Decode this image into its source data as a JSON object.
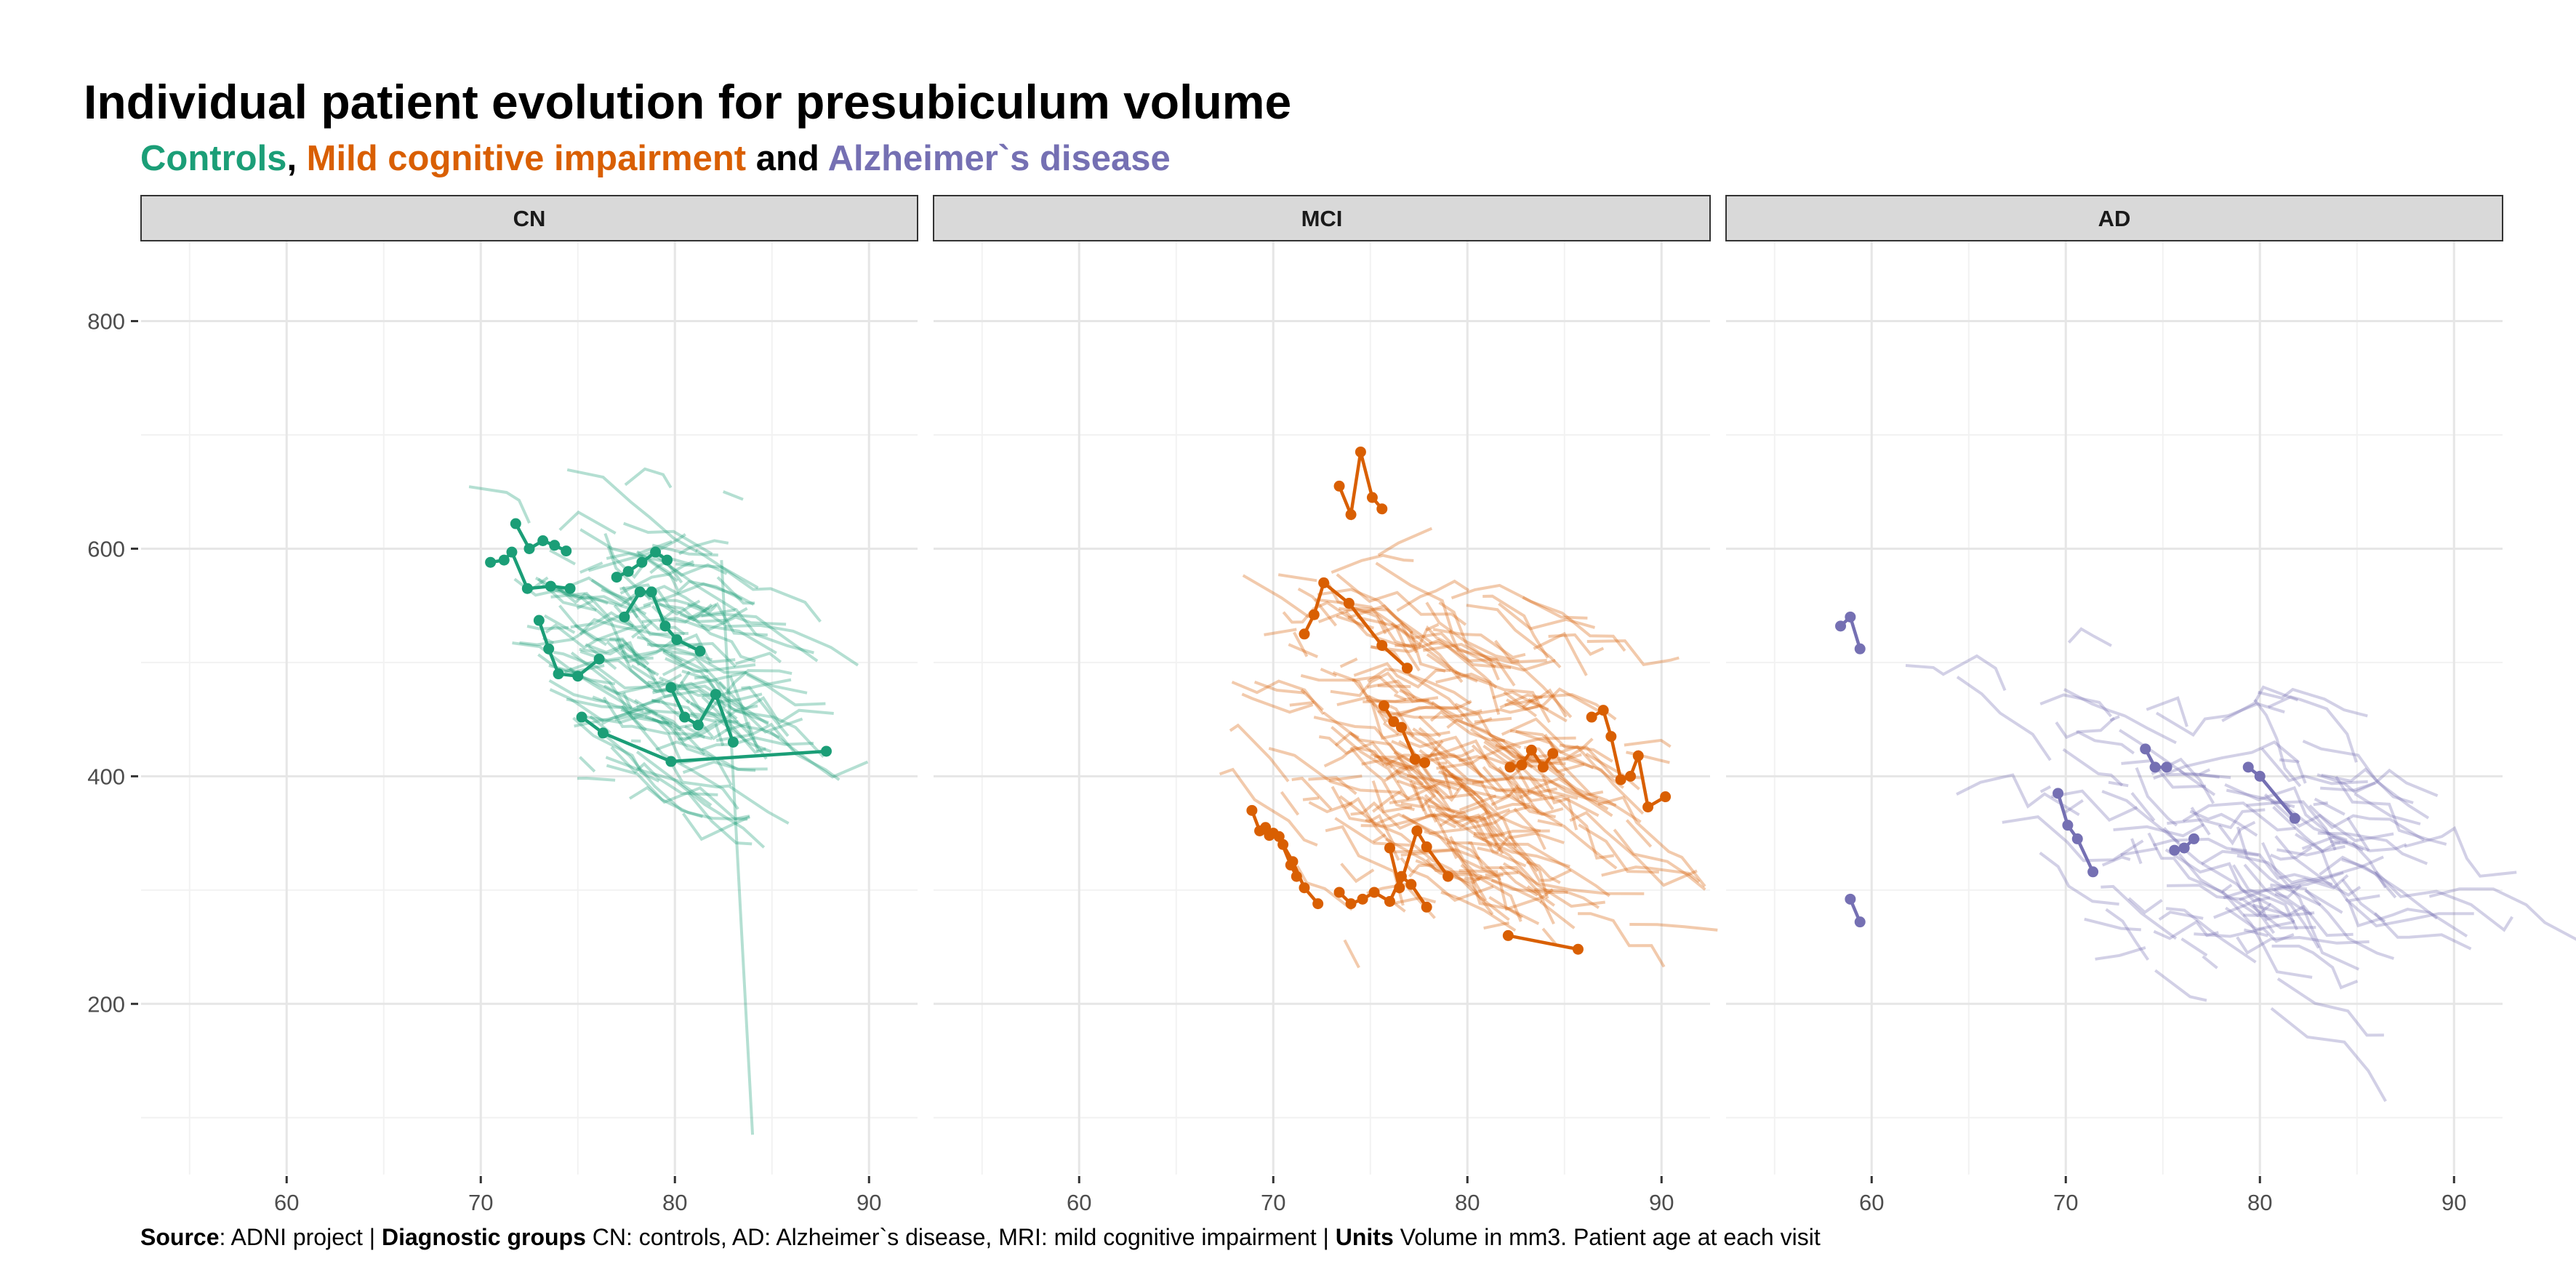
{
  "title": "Individual patient evolution for presubiculum volume",
  "subtitle": {
    "part1": "Controls",
    "sep1": ", ",
    "part2": "Mild cognitive impairment",
    "sep2": " and ",
    "part3": "Alzheimer`s disease",
    "color1": "#1b9e77",
    "color2": "#d95f02",
    "color3": "#7570b3"
  },
  "caption": {
    "label1": "Source",
    "text1": ": ADNI project | ",
    "label2": "Diagnostic groups",
    "text2": " CN: controls, AD: Alzheimer`s disease, MRI: mild cognitive impairment | ",
    "label3": "Units",
    "text3": " Volume in mm3. Patient age at each visit"
  },
  "chart_data": {
    "type": "line",
    "facets": [
      "CN",
      "MCI",
      "AD"
    ],
    "xlim": [
      52.5,
      92.5
    ],
    "ylim": [
      50,
      870
    ],
    "x_ticks": [
      60,
      70,
      80,
      90
    ],
    "y_ticks": [
      200,
      400,
      600,
      800
    ],
    "grid": true,
    "background_trajectories": "many faint individual patient trajectories (one line per patient) across all facets",
    "highlighted_series": {
      "CN": [
        {
          "x": [
            70.5,
            71.2,
            71.6,
            72.4,
            73.6,
            74.6
          ],
          "y": [
            588,
            590,
            597,
            565,
            567,
            565
          ]
        },
        {
          "x": [
            71.8,
            72.5,
            73.2,
            73.8,
            74.4
          ],
          "y": [
            622,
            600,
            607,
            603,
            598
          ]
        },
        {
          "x": [
            73.0,
            73.5,
            74.0,
            75.0,
            76.1
          ],
          "y": [
            537,
            512,
            490,
            488,
            503
          ]
        },
        {
          "x": [
            75.2,
            76.3,
            79.8,
            87.8
          ],
          "y": [
            452,
            438,
            413,
            422
          ]
        },
        {
          "x": [
            77.0,
            77.6,
            78.3,
            79.0,
            79.6
          ],
          "y": [
            575,
            580,
            588,
            597,
            590
          ]
        },
        {
          "x": [
            77.4,
            78.2,
            78.8,
            79.5,
            80.1,
            81.3
          ],
          "y": [
            540,
            562,
            562,
            532,
            520,
            510
          ]
        },
        {
          "x": [
            79.8,
            80.5,
            81.2,
            82.1,
            83.0
          ],
          "y": [
            478,
            452,
            445,
            472,
            430
          ]
        }
      ],
      "MCI": [
        {
          "x": [
            73.4,
            74.0,
            74.5,
            75.1,
            75.6
          ],
          "y": [
            655,
            630,
            685,
            645,
            635
          ]
        },
        {
          "x": [
            71.6,
            72.1,
            72.6,
            73.9,
            75.6,
            76.9
          ],
          "y": [
            525,
            542,
            570,
            552,
            515,
            495
          ]
        },
        {
          "x": [
            75.7,
            76.2,
            76.6,
            77.3,
            77.8
          ],
          "y": [
            462,
            448,
            443,
            415,
            412
          ]
        },
        {
          "x": [
            68.9,
            69.3,
            69.8,
            70.3,
            70.9,
            71.2
          ],
          "y": [
            370,
            352,
            348,
            347,
            322,
            312
          ]
        },
        {
          "x": [
            69.6,
            70.0,
            70.5,
            71.0,
            71.6,
            72.3
          ],
          "y": [
            355,
            350,
            340,
            325,
            302,
            288
          ]
        },
        {
          "x": [
            73.4,
            74.0,
            74.6,
            75.2,
            76.0,
            76.6,
            77.1,
            77.9
          ],
          "y": [
            298,
            288,
            292,
            298,
            290,
            312,
            305,
            285
          ]
        },
        {
          "x": [
            76.0,
            76.5,
            77.4,
            77.9,
            79.0
          ],
          "y": [
            337,
            302,
            352,
            338,
            312
          ]
        },
        {
          "x": [
            82.2,
            82.8,
            83.3,
            83.9,
            84.4
          ],
          "y": [
            408,
            410,
            423,
            408,
            420
          ]
        },
        {
          "x": [
            86.4,
            87.0,
            87.4,
            87.9,
            88.4,
            88.8,
            89.3,
            90.2
          ],
          "y": [
            452,
            458,
            435,
            397,
            400,
            418,
            373,
            382
          ]
        },
        {
          "x": [
            82.1,
            85.7
          ],
          "y": [
            260,
            248
          ]
        }
      ],
      "AD": [
        {
          "x": [
            58.4,
            58.9,
            59.4
          ],
          "y": [
            532,
            540,
            512
          ]
        },
        {
          "x": [
            58.9,
            59.4
          ],
          "y": [
            292,
            272
          ]
        },
        {
          "x": [
            69.6,
            70.1,
            70.6,
            71.4
          ],
          "y": [
            385,
            357,
            345,
            316
          ]
        },
        {
          "x": [
            74.1,
            74.6,
            75.2
          ],
          "y": [
            424,
            408,
            408
          ]
        },
        {
          "x": [
            75.6,
            76.1,
            76.6
          ],
          "y": [
            335,
            337,
            345
          ]
        },
        {
          "x": [
            79.4,
            80.0,
            81.8
          ],
          "y": [
            408,
            400,
            363
          ]
        }
      ]
    }
  }
}
